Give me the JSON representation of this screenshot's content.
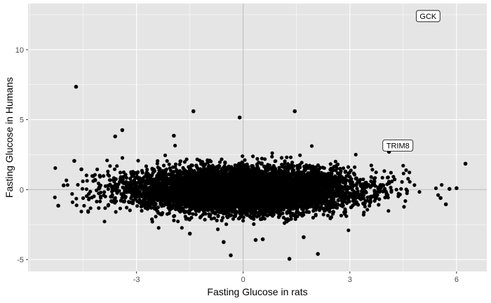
{
  "chart_data": {
    "type": "scatter",
    "xlabel": "Fasting Glucose in rats",
    "ylabel": "Fasting Glucose in Humans",
    "xlim": [
      -6.05,
      6.85
    ],
    "ylim": [
      -5.85,
      13.3
    ],
    "x_ticks": [
      -3,
      0,
      3,
      6
    ],
    "y_ticks": [
      -5,
      0,
      5,
      10
    ],
    "x_tick_labels": [
      "-3",
      "0",
      "3",
      "6"
    ],
    "y_tick_labels": [
      "-5",
      "0",
      "5",
      "10"
    ],
    "grid": true,
    "reference_lines": {
      "x": 0,
      "y": 0
    },
    "colors": {
      "panel": "#e5e5e5",
      "grid": "#ffffff",
      "points": "#000000",
      "reference": "#b3b3b3"
    },
    "annotations": [
      {
        "label": "GCK",
        "x": 5.2,
        "y": 12.4
      },
      {
        "label": "TRIM8",
        "x": 4.35,
        "y": 3.15
      }
    ],
    "dense_cloud": {
      "x_center": 0,
      "y_center": 0,
      "x_sd": 1.45,
      "y_sd": 0.72,
      "n_points": 9000
    },
    "notable_points": [
      {
        "x": -4.7,
        "y": 7.35
      },
      {
        "x": -1.4,
        "y": 5.6
      },
      {
        "x": -0.1,
        "y": 5.15
      },
      {
        "x": 1.45,
        "y": 5.6
      },
      {
        "x": -3.4,
        "y": 4.25
      },
      {
        "x": -1.95,
        "y": 3.85
      },
      {
        "x": -3.6,
        "y": 3.8
      },
      {
        "x": 4.1,
        "y": 2.7
      },
      {
        "x": 6.25,
        "y": 1.85
      },
      {
        "x": 5.8,
        "y": 0.05
      },
      {
        "x": 5.55,
        "y": -0.6
      },
      {
        "x": 6.0,
        "y": 0.1
      },
      {
        "x": 5.7,
        "y": -1.05
      },
      {
        "x": -5.2,
        "y": -1.15
      },
      {
        "x": -5.05,
        "y": 0.3
      },
      {
        "x": -4.75,
        "y": 2.05
      },
      {
        "x": -4.55,
        "y": 1.45
      },
      {
        "x": -0.35,
        "y": -4.7
      },
      {
        "x": 1.3,
        "y": -4.95
      },
      {
        "x": 2.1,
        "y": -4.6
      },
      {
        "x": -0.55,
        "y": -3.75
      },
      {
        "x": 0.35,
        "y": -3.6
      },
      {
        "x": 0.55,
        "y": -3.55
      },
      {
        "x": 1.7,
        "y": -3.4
      },
      {
        "x": -1.5,
        "y": -3.15
      }
    ]
  }
}
